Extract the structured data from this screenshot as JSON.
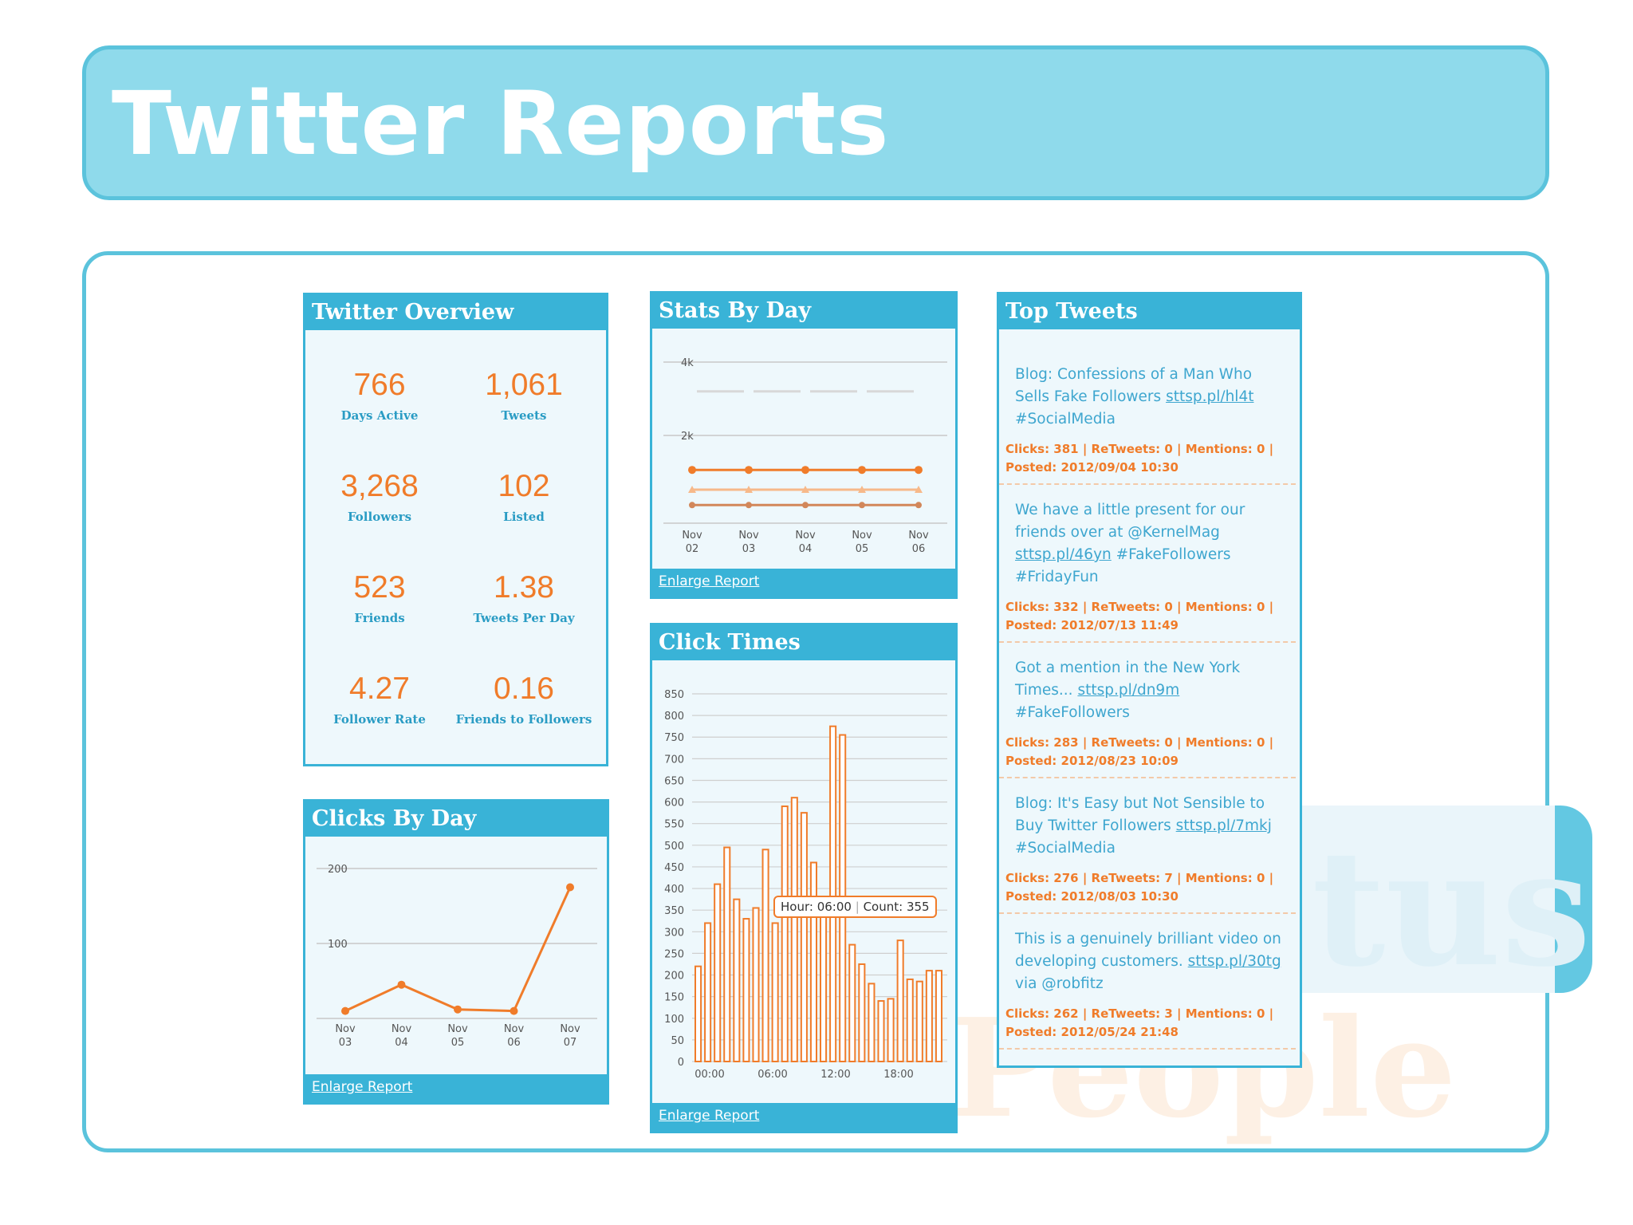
{
  "page_title": "Twitter Reports",
  "background_words": [
    "tus",
    "People"
  ],
  "overview": {
    "title": "Twitter Overview",
    "stats": [
      {
        "value": "766",
        "label": "Days Active"
      },
      {
        "value": "1,061",
        "label": "Tweets"
      },
      {
        "value": "3,268",
        "label": "Followers"
      },
      {
        "value": "102",
        "label": "Listed"
      },
      {
        "value": "523",
        "label": "Friends"
      },
      {
        "value": "1.38",
        "label": "Tweets Per Day"
      },
      {
        "value": "4.27",
        "label": "Follower Rate"
      },
      {
        "value": "0.16",
        "label": "Friends to Followers"
      }
    ]
  },
  "clicks_by_day": {
    "title": "Clicks By Day",
    "link": "Enlarge Report",
    "chart_data": {
      "type": "line",
      "x": [
        "Nov 03",
        "Nov 04",
        "Nov 05",
        "Nov 06",
        "Nov 07"
      ],
      "values": [
        10,
        45,
        12,
        10,
        175
      ],
      "yticks": [
        "200",
        "100"
      ],
      "ylim": [
        0,
        200
      ],
      "color": "#f07c2a"
    }
  },
  "stats_by_day": {
    "title": "Stats By Day",
    "link": "Enlarge Report",
    "chart_data": {
      "type": "line",
      "x": [
        "Nov 02",
        "Nov 03",
        "Nov 04",
        "Nov 05",
        "Nov 06"
      ],
      "yticks": [
        "4k",
        "2k"
      ],
      "ylim": [
        0,
        4000
      ],
      "series": [
        {
          "values": [
            3200,
            3200,
            3200,
            3200,
            3200
          ],
          "color": "#d8d8d8"
        },
        {
          "values": [
            1061,
            1061,
            1061,
            1061,
            1061
          ],
          "color": "#f07c2a"
        },
        {
          "values": [
            523,
            523,
            523,
            523,
            523
          ],
          "color": "#f7b98a"
        },
        {
          "values": [
            102,
            102,
            102,
            102,
            102
          ],
          "color": "#d2875a"
        }
      ]
    }
  },
  "click_times": {
    "title": "Click Times",
    "link": "Enlarge Report",
    "tooltip": {
      "hour_label": "Hour:",
      "hour": "06:00",
      "sep": "|",
      "count_label": "Count:",
      "count": "355"
    },
    "chart_data": {
      "type": "bar",
      "yticks": [
        "850",
        "800",
        "750",
        "700",
        "650",
        "600",
        "550",
        "500",
        "450",
        "400",
        "350",
        "300",
        "250",
        "200",
        "150",
        "100",
        "50",
        "0"
      ],
      "ylim": [
        0,
        850
      ],
      "xticks": [
        "00:00",
        "06:00",
        "12:00",
        "18:00"
      ],
      "values": [
        220,
        320,
        410,
        495,
        375,
        330,
        355,
        490,
        320,
        590,
        610,
        575,
        460,
        355,
        775,
        755,
        270,
        225,
        180,
        140,
        145,
        280,
        190,
        185,
        210,
        210
      ],
      "color": "#f07c2a"
    }
  },
  "top_tweets": {
    "title": "Top Tweets",
    "items": [
      {
        "text": "Blog: Confessions of a Man Who Sells Fake Followers ",
        "link": "sttsp.pl/hl4t",
        "after": " #SocialMedia",
        "meta1": "Clicks: 381 | ReTweets: 0 | Mentions: 0 |",
        "meta2": "Posted: 2012/09/04 10:30"
      },
      {
        "text": "We have a little present for our friends over at @KernelMag ",
        "link": "sttsp.pl/46yn",
        "after": " #FakeFollowers #FridayFun",
        "meta1": "Clicks: 332 | ReTweets: 0 | Mentions: 0 |",
        "meta2": "Posted: 2012/07/13 11:49"
      },
      {
        "text": "Got a mention in the New York Times... ",
        "link": "sttsp.pl/dn9m",
        "after": " #FakeFollowers",
        "meta1": "Clicks: 283 | ReTweets: 0 | Mentions: 0 |",
        "meta2": "Posted: 2012/08/23 10:09"
      },
      {
        "text": "Blog: It's Easy but Not Sensible to Buy Twitter Followers ",
        "link": "sttsp.pl/7mkj",
        "after": " #SocialMedia",
        "meta1": "Clicks: 276 | ReTweets: 7 | Mentions: 0 |",
        "meta2": "Posted: 2012/08/03 10:30"
      },
      {
        "text": "This is a genuinely brilliant video on developing customers. ",
        "link": "sttsp.pl/30tg",
        "after": " via @robfitz",
        "meta1": "Clicks: 262 | ReTweets: 3 | Mentions: 0 |",
        "meta2": "Posted: 2012/05/24 21:48"
      }
    ]
  }
}
